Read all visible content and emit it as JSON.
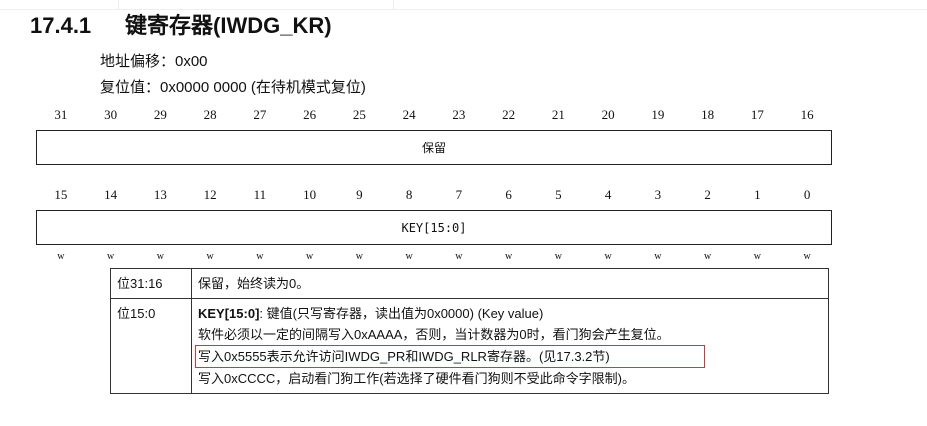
{
  "section": {
    "number": "17.4.1",
    "title": "键寄存器(IWDG_KR)"
  },
  "offset": "地址偏移：0x00",
  "reset": "复位值：0x0000 0000 (在待机模式复位)",
  "bits_high": [
    "31",
    "30",
    "29",
    "28",
    "27",
    "26",
    "25",
    "24",
    "23",
    "22",
    "21",
    "20",
    "19",
    "18",
    "17",
    "16"
  ],
  "bits_low": [
    "15",
    "14",
    "13",
    "12",
    "11",
    "10",
    "9",
    "8",
    "7",
    "6",
    "5",
    "4",
    "3",
    "2",
    "1",
    "0"
  ],
  "reserved_label": "保留",
  "key_label": "KEY[15:0]",
  "access": [
    "w",
    "w",
    "w",
    "w",
    "w",
    "w",
    "w",
    "w",
    "w",
    "w",
    "w",
    "w",
    "w",
    "w",
    "w",
    "w"
  ],
  "table": {
    "rows": [
      {
        "bits": "位31:16",
        "desc": "保留，始终读为0。"
      },
      {
        "bits": "位15:0",
        "name": "KEY[15:0]",
        "desc_head": ": 键值(只写寄存器，读出值为0x0000) (Key value)",
        "lines": [
          "软件必须以一定的间隔写入0xAAAA，否则，当计数器为0时，看门狗会产生复位。",
          "写入0x5555表示允许访问IWDG_PR和IWDG_RLR寄存器。(见17.3.2节)",
          "写入0xCCCC，启动看门狗工作(若选择了硬件看门狗则不受此命令字限制)。"
        ]
      }
    ]
  },
  "highlight_color": "#dd3333"
}
